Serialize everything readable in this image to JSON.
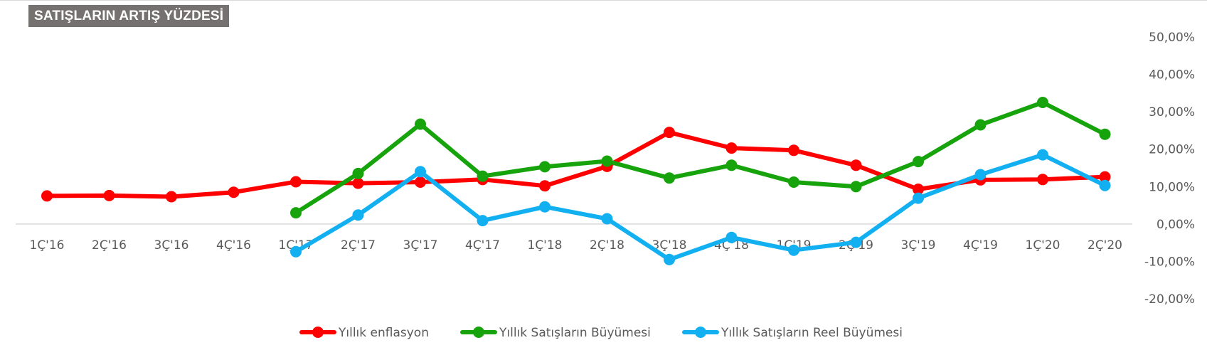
{
  "chart_data": {
    "type": "line",
    "title": "SATIŞLARIN ARTIŞ YÜZDESİ",
    "xlabel": "",
    "ylabel": "",
    "categories": [
      "1Ç'16",
      "2Ç'16",
      "3Ç'16",
      "4Ç'16",
      "1Ç'17",
      "2Ç'17",
      "3Ç'17",
      "4Ç'17",
      "1Ç'18",
      "2Ç'18",
      "3Ç'18",
      "4Ç'18",
      "1Ç'19",
      "2Ç'19",
      "3Ç'19",
      "4Ç'19",
      "1Ç'20",
      "2Ç'20"
    ],
    "ylim": [
      -20,
      50
    ],
    "yticks": [
      50,
      40,
      30,
      20,
      10,
      0,
      -10,
      -20
    ],
    "ytick_labels": [
      "50,00%",
      "40,00%",
      "30,00%",
      "20,00%",
      "10,00%",
      "0,00%",
      "-10,00%",
      "-20,00%"
    ],
    "y_axis_position": "right",
    "grid": false,
    "legend_position": "bottom",
    "series": [
      {
        "name": "Yıllık enflasyon",
        "color": "#ff0000",
        "values": [
          7.5,
          7.6,
          7.3,
          8.5,
          11.3,
          10.9,
          11.2,
          11.9,
          10.2,
          15.4,
          24.5,
          20.3,
          19.7,
          15.7,
          9.3,
          11.8,
          11.9,
          12.6
        ]
      },
      {
        "name": "Yıllık Satışların Büyümesi",
        "color": "#16a30c",
        "values": [
          null,
          null,
          null,
          null,
          3.0,
          13.5,
          26.7,
          12.8,
          15.3,
          16.8,
          12.3,
          15.7,
          11.2,
          10.0,
          16.7,
          26.5,
          32.5,
          24.0
        ]
      },
      {
        "name": "Yıllık Satışların Reel Büyümesi",
        "color": "#12b0f0",
        "values": [
          null,
          null,
          null,
          null,
          -7.4,
          2.4,
          14.0,
          0.9,
          4.6,
          1.4,
          -9.5,
          -3.6,
          -7.0,
          -4.9,
          6.9,
          13.2,
          18.5,
          10.3
        ]
      }
    ]
  }
}
